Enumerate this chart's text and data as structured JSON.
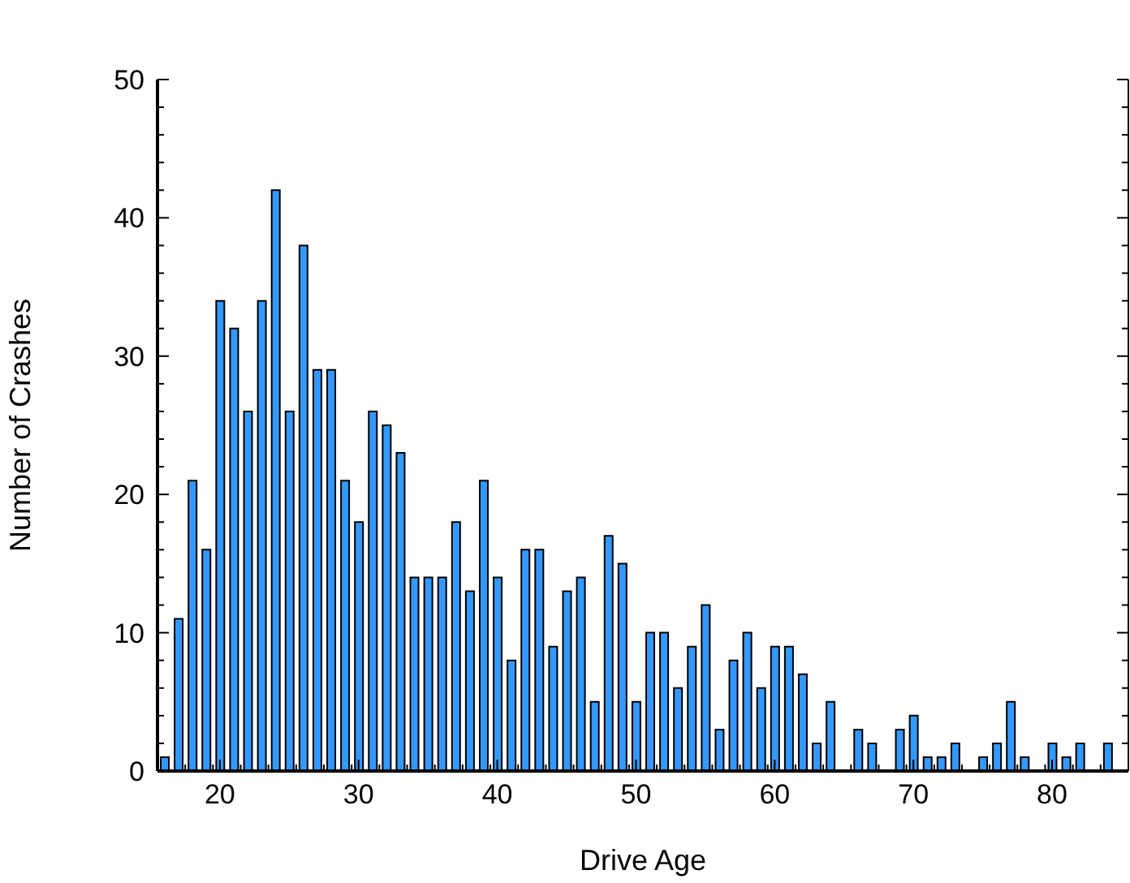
{
  "chart_data": {
    "type": "bar",
    "xlabel": "Drive Age",
    "ylabel": "Number of Crashes",
    "x": [
      16,
      17,
      18,
      19,
      20,
      21,
      22,
      23,
      24,
      25,
      26,
      27,
      28,
      29,
      30,
      31,
      32,
      33,
      34,
      35,
      36,
      37,
      38,
      39,
      40,
      41,
      42,
      43,
      44,
      45,
      46,
      47,
      48,
      49,
      50,
      51,
      52,
      53,
      54,
      55,
      56,
      57,
      58,
      59,
      60,
      61,
      62,
      63,
      64,
      65,
      66,
      67,
      68,
      69,
      70,
      71,
      72,
      73,
      74,
      75,
      76,
      77,
      78,
      79,
      80,
      81,
      82,
      83,
      84
    ],
    "values": [
      1,
      11,
      21,
      16,
      34,
      32,
      26,
      34,
      42,
      26,
      38,
      29,
      29,
      21,
      18,
      26,
      25,
      23,
      14,
      14,
      14,
      18,
      13,
      21,
      14,
      8,
      16,
      16,
      9,
      13,
      14,
      5,
      17,
      15,
      5,
      10,
      10,
      6,
      9,
      12,
      3,
      8,
      10,
      6,
      9,
      9,
      7,
      2,
      5,
      0,
      3,
      2,
      0,
      3,
      4,
      1,
      1,
      2,
      0,
      1,
      2,
      5,
      1,
      0,
      2,
      1,
      2,
      0,
      2
    ],
    "color": "#3399ff",
    "xlim": [
      15.5,
      85.5
    ],
    "xticks": [
      {
        "value": 17.5,
        "label": null
      },
      {
        "value": 19.5,
        "label": null
      },
      20,
      {
        "value": 21.5,
        "label": null
      },
      {
        "value": 23.5,
        "label": null
      },
      {
        "value": 25.5,
        "label": null
      },
      {
        "value": 27.5,
        "label": null
      },
      {
        "value": 29.5,
        "label": null
      },
      30,
      {
        "value": 31.5,
        "label": null
      },
      {
        "value": 33.5,
        "label": null
      },
      {
        "value": 35.5,
        "label": null
      },
      {
        "value": 37.5,
        "label": null
      },
      {
        "value": 39.5,
        "label": null
      },
      40,
      {
        "value": 41.5,
        "label": null
      },
      {
        "value": 43.5,
        "label": null
      },
      {
        "value": 45.5,
        "label": null
      },
      {
        "value": 47.5,
        "label": null
      },
      {
        "value": 49.5,
        "label": null
      },
      50,
      {
        "value": 51.5,
        "label": null
      },
      {
        "value": 53.5,
        "label": null
      },
      {
        "value": 55.5,
        "label": null
      },
      {
        "value": 57.5,
        "label": null
      },
      {
        "value": 59.5,
        "label": null
      },
      60,
      {
        "value": 61.5,
        "label": null
      },
      {
        "value": 63.5,
        "label": null
      },
      {
        "value": 65.5,
        "label": null
      },
      {
        "value": 67.5,
        "label": null
      },
      {
        "value": 69.5,
        "label": null
      },
      70,
      {
        "value": 71.5,
        "label": null
      },
      {
        "value": 73.5,
        "label": null
      },
      {
        "value": 75.5,
        "label": null
      },
      {
        "value": 77.5,
        "label": null
      },
      {
        "value": 79.5,
        "label": null
      },
      80,
      {
        "value": 81.5,
        "label": null
      },
      {
        "value": 83.5,
        "label": null
      }
    ],
    "ylim": [
      0,
      50
    ],
    "yticks": [
      0,
      {
        "value": 2,
        "label": null
      },
      {
        "value": 4,
        "label": null
      },
      {
        "value": 6,
        "label": null
      },
      {
        "value": 8,
        "label": null
      },
      10,
      {
        "value": 12,
        "label": null
      },
      {
        "value": 14,
        "label": null
      },
      {
        "value": 16,
        "label": null
      },
      {
        "value": 18,
        "label": null
      },
      20,
      {
        "value": 22,
        "label": null
      },
      {
        "value": 24,
        "label": null
      },
      {
        "value": 26,
        "label": null
      },
      {
        "value": 28,
        "label": null
      },
      30,
      {
        "value": 32,
        "label": null
      },
      {
        "value": 34,
        "label": null
      },
      {
        "value": 36,
        "label": null
      },
      {
        "value": 38,
        "label": null
      },
      40,
      {
        "value": 42,
        "label": null
      },
      {
        "value": 44,
        "label": null
      },
      {
        "value": 46,
        "label": null
      },
      {
        "value": 48,
        "label": null
      },
      50
    ],
    "grid": false,
    "legend": false
  }
}
